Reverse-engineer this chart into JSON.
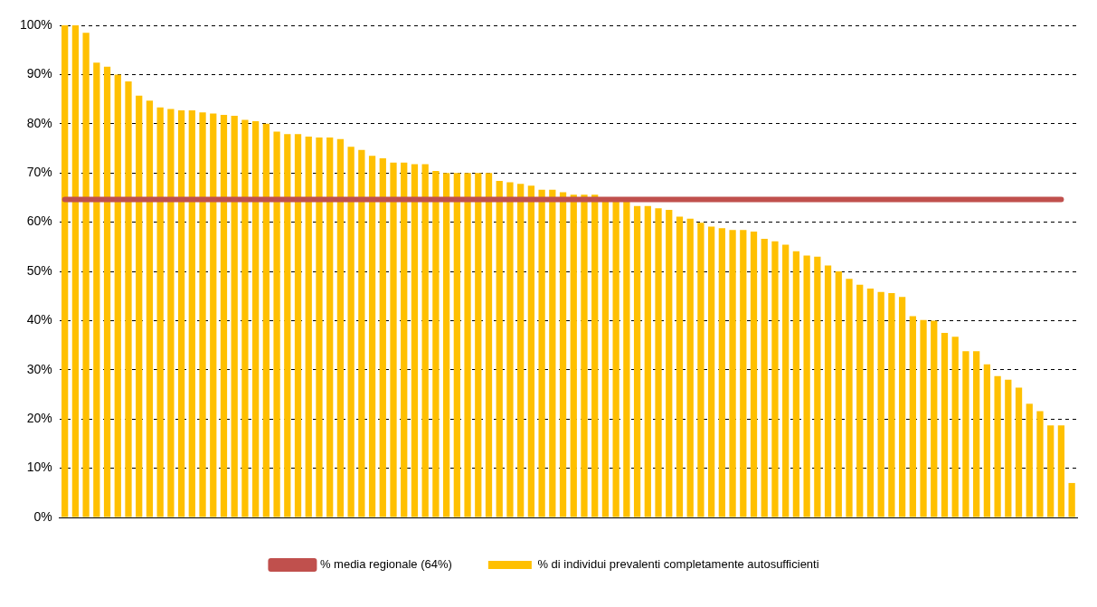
{
  "chart_data": {
    "type": "bar",
    "categories": [
      null,
      null,
      null,
      null,
      null,
      null,
      null,
      null,
      null,
      null,
      null,
      null,
      null,
      null,
      null,
      null,
      null,
      null,
      null,
      null,
      null,
      null,
      null,
      null,
      null,
      null,
      null,
      null,
      null,
      null,
      null,
      null,
      null,
      null,
      null,
      null,
      null,
      null,
      null,
      null,
      null,
      null,
      null,
      null,
      null,
      null,
      null,
      null,
      null,
      null,
      null,
      null,
      null,
      null,
      null,
      null,
      null,
      null,
      null,
      null,
      null,
      null,
      null,
      null,
      null,
      null,
      null,
      null,
      null,
      null,
      null,
      null,
      null,
      null,
      null,
      null,
      null,
      null,
      null,
      null,
      null,
      null,
      null,
      null,
      null,
      null,
      null,
      null,
      null,
      null,
      null,
      null,
      null,
      null,
      null,
      null
    ],
    "series": [
      {
        "name": "% di individui prevalenti completamente autosufficienti",
        "color": "#ffc000",
        "values": [
          100,
          100,
          98.5,
          92.4,
          91.6,
          90,
          88.6,
          85.7,
          84.7,
          83.3,
          83,
          82.7,
          82.7,
          82.3,
          82.1,
          81.8,
          81.6,
          80.8,
          80.5,
          80,
          78.4,
          77.9,
          77.9,
          77.4,
          77.2,
          77.2,
          76.9,
          75.3,
          74.7,
          73.5,
          73,
          72.1,
          72.1,
          71.8,
          71.8,
          70.4,
          70,
          70,
          70,
          70,
          70,
          68.4,
          68.1,
          67.8,
          67.4,
          66.6,
          66.6,
          66.1,
          65.6,
          65.6,
          65.6,
          64.9,
          64.6,
          64.3,
          63.3,
          63.3,
          62.8,
          62.5,
          61.1,
          60.7,
          59.9,
          59.1,
          58.8,
          58.4,
          58.4,
          58.1,
          56.6,
          56.1,
          55.4,
          54.1,
          53.2,
          53,
          51.2,
          50,
          48.5,
          47.3,
          46.5,
          45.8,
          45.6,
          44.8,
          40.9,
          40.1,
          40,
          37.5,
          36.7,
          33.8,
          33.8,
          31.1,
          28.7,
          28,
          26.4,
          23.1,
          21.6,
          18.7,
          18.7,
          7
        ]
      },
      {
        "name": "% media regionale (64%)",
        "type": "line",
        "color": "#c0504d",
        "values": [
          64.6,
          64.6,
          64.6,
          64.6,
          64.6,
          64.6,
          64.6,
          64.6,
          64.6,
          64.6,
          64.6,
          64.6,
          64.6,
          64.6,
          64.6,
          64.6,
          64.6,
          64.6,
          64.6,
          64.6,
          64.6,
          64.6,
          64.6,
          64.6,
          64.6,
          64.6,
          64.6,
          64.6,
          64.6,
          64.6,
          64.6,
          64.6,
          64.6,
          64.6,
          64.6,
          64.6,
          64.6,
          64.6,
          64.6,
          64.6,
          64.6,
          64.6,
          64.6,
          64.6,
          64.6,
          64.6,
          64.6,
          64.6,
          64.6,
          64.6,
          64.6,
          64.6,
          64.6,
          64.6,
          64.6,
          64.6,
          64.6,
          64.6,
          64.6,
          64.6,
          64.6,
          64.6,
          64.6,
          64.6,
          64.6,
          64.6,
          64.6,
          64.6,
          64.6,
          64.6,
          64.6,
          64.6,
          64.6,
          64.6,
          64.6,
          64.6,
          64.6,
          64.6,
          64.6,
          64.6,
          64.6,
          64.6,
          64.6,
          64.6,
          64.6,
          64.6,
          64.6,
          64.6,
          64.6,
          64.6,
          64.6,
          64.6,
          64.6,
          64.6,
          64.6,
          null
        ]
      }
    ],
    "ylim": [
      0,
      100
    ],
    "yticks": [
      {
        "value": 0,
        "label": "0%"
      },
      {
        "value": 10,
        "label": "10%"
      },
      {
        "value": 20,
        "label": "20%"
      },
      {
        "value": 30,
        "label": "30%"
      },
      {
        "value": 40,
        "label": "40%"
      },
      {
        "value": 50,
        "label": "50%"
      },
      {
        "value": 60,
        "label": "60%"
      },
      {
        "value": 70,
        "label": "70%"
      },
      {
        "value": 80,
        "label": "80%"
      },
      {
        "value": 90,
        "label": "90%"
      },
      {
        "value": 100,
        "label": "100%"
      }
    ],
    "grid": "y",
    "legend": "bottom",
    "marker": "none"
  }
}
